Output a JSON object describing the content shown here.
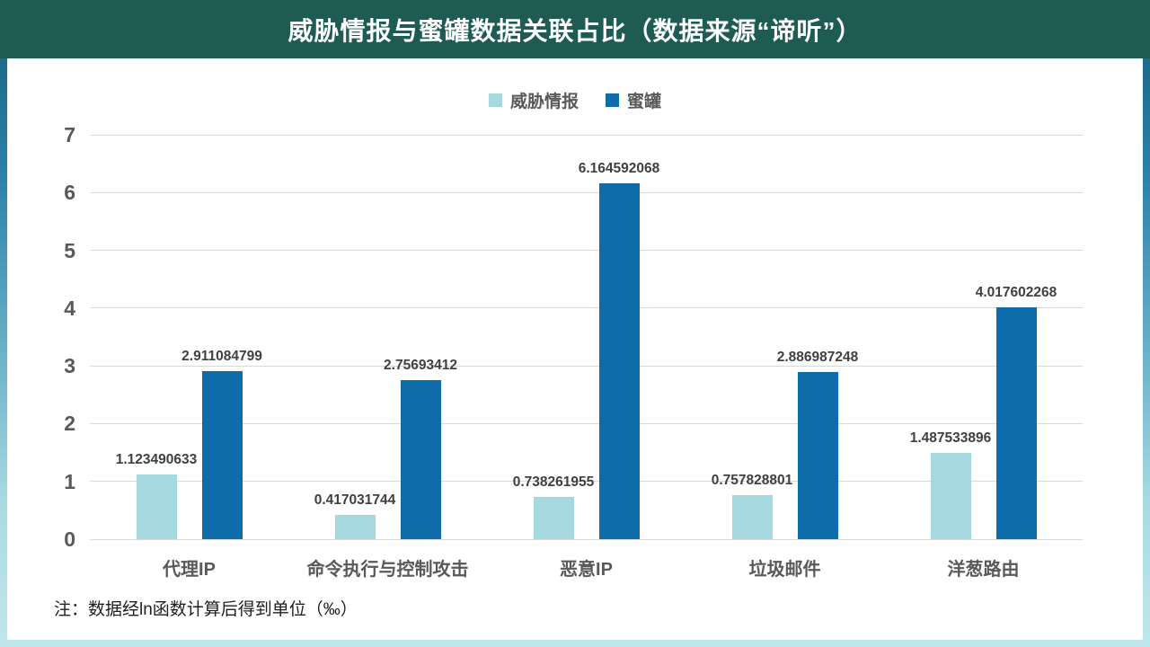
{
  "header": {
    "title": "威胁情报与蜜罐数据关联占比（数据来源“谛听”）",
    "background_color": "#1d5b53",
    "text_color": "#ffffff"
  },
  "footer": {
    "note": "注：数据经ln函数计算后得到单位（‰）"
  },
  "chart_data": {
    "type": "bar",
    "title": "威胁情报与蜜罐数据关联占比（数据来源“谛听”）",
    "categories": [
      "代理IP",
      "命令执行与控制攻击",
      "恶意IP",
      "垃圾邮件",
      "洋葱路由"
    ],
    "series": [
      {
        "id": "threat-intel",
        "name": "威胁情报",
        "color": "#a5d9df",
        "values": [
          1.123490633,
          0.417031744,
          0.738261955,
          0.757828801,
          1.487533896
        ],
        "value_labels": [
          "1.123490633",
          "0.417031744",
          "0.738261955",
          "0.757828801",
          "1.487533896"
        ]
      },
      {
        "id": "honeypot",
        "name": "蜜罐",
        "color": "#0d6ca9",
        "values": [
          2.911084799,
          2.75693412,
          6.164592068,
          2.886987248,
          4.017602268
        ],
        "value_labels": [
          "2.911084799",
          "2.75693412",
          "6.164592068",
          "2.886987248",
          "4.017602268"
        ]
      }
    ],
    "xlabel": "",
    "ylabel": "",
    "ylim": [
      0,
      7
    ],
    "yticks": [
      0,
      1,
      2,
      3,
      4,
      5,
      6,
      7
    ],
    "grid": true,
    "legend_position": "top",
    "gridline_color": "#d9d9d9",
    "axis_text_color": "#595959",
    "value_label_color": "#404040"
  }
}
